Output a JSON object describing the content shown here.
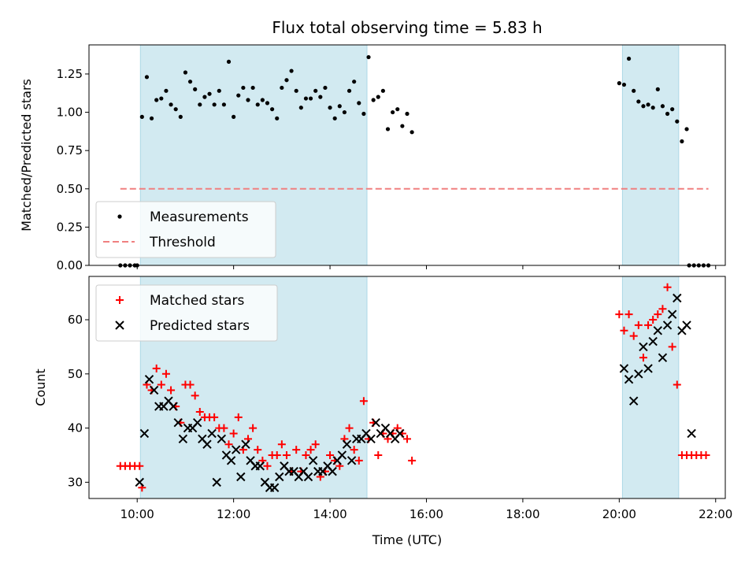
{
  "chart_data": {
    "title": "Flux total observing time = 5.83 h",
    "xlabel": "Time (UTC)",
    "x_ticks": [
      "10:00",
      "12:00",
      "14:00",
      "16:00",
      "18:00",
      "20:00",
      "22:00"
    ],
    "shaded_intervals": [
      [
        "10:04",
        "14:46"
      ],
      [
        "20:04",
        "21:14"
      ]
    ],
    "shade_color": "#add8e6",
    "subplots": [
      {
        "type": "scatter",
        "ylabel": "Matched/Predicted stars",
        "ylim": [
          0,
          1.44
        ],
        "y_ticks": [
          "0.00",
          "0.25",
          "0.50",
          "0.75",
          "1.00",
          "1.25"
        ],
        "legend": "lower-left",
        "series": [
          {
            "name": "Measurements",
            "marker": "dot",
            "color": "#000000",
            "points": [
              [
                "9:39",
                0
              ],
              [
                "9:45",
                0
              ],
              [
                "9:51",
                0
              ],
              [
                "9:57",
                0
              ],
              [
                "10:00",
                0
              ],
              [
                "10:06",
                0.97
              ],
              [
                "10:12",
                1.23
              ],
              [
                "10:18",
                0.96
              ],
              [
                "10:24",
                1.08
              ],
              [
                "10:30",
                1.09
              ],
              [
                "10:36",
                1.14
              ],
              [
                "10:42",
                1.05
              ],
              [
                "10:48",
                1.02
              ],
              [
                "10:54",
                0.97
              ],
              [
                "11:00",
                1.26
              ],
              [
                "11:06",
                1.2
              ],
              [
                "11:12",
                1.15
              ],
              [
                "11:18",
                1.05
              ],
              [
                "11:24",
                1.1
              ],
              [
                "11:30",
                1.12
              ],
              [
                "11:36",
                1.05
              ],
              [
                "11:42",
                1.14
              ],
              [
                "11:48",
                1.05
              ],
              [
                "11:54",
                1.33
              ],
              [
                "12:00",
                0.97
              ],
              [
                "12:06",
                1.11
              ],
              [
                "12:12",
                1.16
              ],
              [
                "12:18",
                1.08
              ],
              [
                "12:24",
                1.16
              ],
              [
                "12:30",
                1.05
              ],
              [
                "12:36",
                1.08
              ],
              [
                "12:42",
                1.06
              ],
              [
                "12:48",
                1.02
              ],
              [
                "12:54",
                0.96
              ],
              [
                "13:00",
                1.16
              ],
              [
                "13:06",
                1.21
              ],
              [
                "13:12",
                1.27
              ],
              [
                "13:18",
                1.14
              ],
              [
                "13:24",
                1.03
              ],
              [
                "13:30",
                1.09
              ],
              [
                "13:36",
                1.09
              ],
              [
                "13:42",
                1.14
              ],
              [
                "13:48",
                1.1
              ],
              [
                "13:54",
                1.16
              ],
              [
                "14:00",
                1.03
              ],
              [
                "14:06",
                0.96
              ],
              [
                "14:12",
                1.04
              ],
              [
                "14:18",
                1.0
              ],
              [
                "14:24",
                1.14
              ],
              [
                "14:30",
                1.2
              ],
              [
                "14:36",
                1.06
              ],
              [
                "14:42",
                0.99
              ],
              [
                "14:48",
                1.36
              ],
              [
                "14:54",
                1.08
              ],
              [
                "15:00",
                1.1
              ],
              [
                "15:06",
                1.14
              ],
              [
                "15:12",
                0.89
              ],
              [
                "15:18",
                1.0
              ],
              [
                "15:24",
                1.02
              ],
              [
                "15:30",
                0.91
              ],
              [
                "15:36",
                0.99
              ],
              [
                "15:42",
                0.87
              ],
              [
                "20:00",
                1.19
              ],
              [
                "20:06",
                1.18
              ],
              [
                "20:12",
                1.35
              ],
              [
                "20:18",
                1.14
              ],
              [
                "20:24",
                1.07
              ],
              [
                "20:30",
                1.04
              ],
              [
                "20:36",
                1.05
              ],
              [
                "20:42",
                1.03
              ],
              [
                "20:48",
                1.15
              ],
              [
                "20:54",
                1.04
              ],
              [
                "21:00",
                0.99
              ],
              [
                "21:06",
                1.02
              ],
              [
                "21:12",
                0.94
              ],
              [
                "21:18",
                0.81
              ],
              [
                "21:24",
                0.89
              ],
              [
                "21:27",
                0
              ],
              [
                "21:33",
                0
              ],
              [
                "21:39",
                0
              ],
              [
                "21:45",
                0
              ],
              [
                "21:51",
                0
              ]
            ]
          },
          {
            "name": "Threshold",
            "marker": "dashed-line",
            "color": "#f08080",
            "points": [
              [
                "9:39",
                0.5
              ],
              [
                "21:51",
                0.5
              ]
            ]
          }
        ]
      },
      {
        "type": "scatter",
        "ylabel": "Count",
        "ylim": [
          27,
          68
        ],
        "y_ticks": [
          "30",
          "40",
          "50",
          "60"
        ],
        "legend": "upper-left",
        "series": [
          {
            "name": "Matched stars",
            "marker": "plus",
            "color": "#ff0000",
            "points": [
              [
                "9:39",
                33
              ],
              [
                "9:45",
                33
              ],
              [
                "9:51",
                33
              ],
              [
                "9:57",
                33
              ],
              [
                "10:03",
                33
              ],
              [
                "10:06",
                29
              ],
              [
                "10:12",
                48
              ],
              [
                "10:18",
                47
              ],
              [
                "10:24",
                51
              ],
              [
                "10:30",
                48
              ],
              [
                "10:36",
                50
              ],
              [
                "10:42",
                47
              ],
              [
                "10:48",
                44
              ],
              [
                "10:54",
                41
              ],
              [
                "11:00",
                48
              ],
              [
                "11:06",
                48
              ],
              [
                "11:12",
                46
              ],
              [
                "11:18",
                43
              ],
              [
                "11:24",
                42
              ],
              [
                "11:30",
                42
              ],
              [
                "11:36",
                42
              ],
              [
                "11:42",
                40
              ],
              [
                "11:48",
                40
              ],
              [
                "11:54",
                37
              ],
              [
                "12:00",
                39
              ],
              [
                "12:06",
                42
              ],
              [
                "12:12",
                36
              ],
              [
                "12:18",
                38
              ],
              [
                "12:24",
                40
              ],
              [
                "12:30",
                36
              ],
              [
                "12:36",
                34
              ],
              [
                "12:42",
                33
              ],
              [
                "12:48",
                35
              ],
              [
                "12:54",
                35
              ],
              [
                "13:00",
                37
              ],
              [
                "13:06",
                35
              ],
              [
                "13:12",
                32
              ],
              [
                "13:18",
                36
              ],
              [
                "13:24",
                32
              ],
              [
                "13:30",
                35
              ],
              [
                "13:36",
                36
              ],
              [
                "13:42",
                37
              ],
              [
                "13:48",
                31
              ],
              [
                "13:54",
                32
              ],
              [
                "14:00",
                35
              ],
              [
                "14:06",
                34
              ],
              [
                "14:12",
                33
              ],
              [
                "14:18",
                38
              ],
              [
                "14:24",
                40
              ],
              [
                "14:30",
                36
              ],
              [
                "14:36",
                34
              ],
              [
                "14:42",
                45
              ],
              [
                "14:48",
                38
              ],
              [
                "14:54",
                41
              ],
              [
                "15:00",
                35
              ],
              [
                "15:06",
                39
              ],
              [
                "15:12",
                38
              ],
              [
                "15:18",
                39
              ],
              [
                "15:24",
                40
              ],
              [
                "15:30",
                39
              ],
              [
                "15:36",
                38
              ],
              [
                "15:42",
                34
              ],
              [
                "20:00",
                61
              ],
              [
                "20:06",
                58
              ],
              [
                "20:12",
                61
              ],
              [
                "20:18",
                57
              ],
              [
                "20:24",
                59
              ],
              [
                "20:30",
                53
              ],
              [
                "20:36",
                59
              ],
              [
                "20:42",
                60
              ],
              [
                "20:48",
                61
              ],
              [
                "20:54",
                62
              ],
              [
                "21:00",
                66
              ],
              [
                "21:06",
                55
              ],
              [
                "21:12",
                48
              ],
              [
                "21:18",
                35
              ],
              [
                "21:24",
                35
              ],
              [
                "21:30",
                35
              ],
              [
                "21:36",
                35
              ],
              [
                "21:42",
                35
              ],
              [
                "21:48",
                35
              ]
            ]
          },
          {
            "name": "Predicted stars",
            "marker": "x",
            "color": "#000000",
            "points": [
              [
                "10:03",
                30
              ],
              [
                "10:09",
                39
              ],
              [
                "10:15",
                49
              ],
              [
                "10:21",
                47
              ],
              [
                "10:27",
                44
              ],
              [
                "10:33",
                44
              ],
              [
                "10:39",
                45
              ],
              [
                "10:45",
                44
              ],
              [
                "10:51",
                41
              ],
              [
                "10:57",
                38
              ],
              [
                "11:03",
                40
              ],
              [
                "11:09",
                40
              ],
              [
                "11:15",
                41
              ],
              [
                "11:21",
                38
              ],
              [
                "11:27",
                37
              ],
              [
                "11:33",
                39
              ],
              [
                "11:39",
                30
              ],
              [
                "11:45",
                38
              ],
              [
                "11:51",
                35
              ],
              [
                "11:57",
                34
              ],
              [
                "12:03",
                36
              ],
              [
                "12:09",
                31
              ],
              [
                "12:15",
                37
              ],
              [
                "12:21",
                34
              ],
              [
                "12:27",
                33
              ],
              [
                "12:33",
                33
              ],
              [
                "12:39",
                30
              ],
              [
                "12:45",
                29
              ],
              [
                "12:51",
                29
              ],
              [
                "12:57",
                31
              ],
              [
                "13:03",
                33
              ],
              [
                "13:09",
                32
              ],
              [
                "13:15",
                32
              ],
              [
                "13:21",
                31
              ],
              [
                "13:27",
                32
              ],
              [
                "13:33",
                31
              ],
              [
                "13:39",
                34
              ],
              [
                "13:45",
                32
              ],
              [
                "13:51",
                32
              ],
              [
                "13:57",
                33
              ],
              [
                "14:03",
                32
              ],
              [
                "14:09",
                34
              ],
              [
                "14:15",
                35
              ],
              [
                "14:21",
                37
              ],
              [
                "14:27",
                34
              ],
              [
                "14:33",
                38
              ],
              [
                "14:39",
                38
              ],
              [
                "14:45",
                39
              ],
              [
                "14:51",
                38
              ],
              [
                "14:57",
                41
              ],
              [
                "15:03",
                39
              ],
              [
                "15:09",
                40
              ],
              [
                "15:15",
                39
              ],
              [
                "15:21",
                38
              ],
              [
                "15:27",
                39
              ],
              [
                "20:06",
                51
              ],
              [
                "20:12",
                49
              ],
              [
                "20:18",
                45
              ],
              [
                "20:24",
                50
              ],
              [
                "20:30",
                55
              ],
              [
                "20:36",
                51
              ],
              [
                "20:42",
                56
              ],
              [
                "20:48",
                58
              ],
              [
                "20:54",
                53
              ],
              [
                "21:00",
                59
              ],
              [
                "21:06",
                61
              ],
              [
                "21:12",
                64
              ],
              [
                "21:18",
                58
              ],
              [
                "21:24",
                59
              ],
              [
                "21:30",
                39
              ]
            ]
          }
        ]
      }
    ]
  }
}
